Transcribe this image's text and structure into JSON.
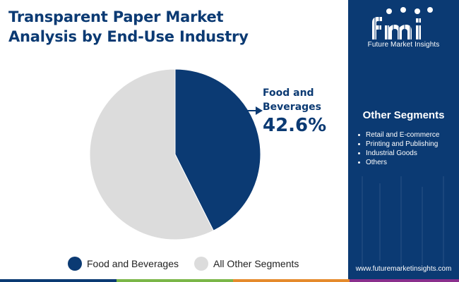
{
  "title": {
    "line1": "Transparent Paper Market",
    "line2": "Analysis by End-Use Industry"
  },
  "chart_data": {
    "type": "pie",
    "title": "Transparent Paper Market Analysis by End-Use Industry",
    "categories": [
      "Food and Beverages",
      "All Other Segments"
    ],
    "values": [
      42.6,
      57.4
    ],
    "colors": [
      "#0b3a73",
      "#dcdcdc"
    ],
    "legend_position": "bottom",
    "annotation": {
      "label": "Food and Beverages",
      "value": "42.6%"
    }
  },
  "legend": {
    "items": [
      {
        "label": "Food and Beverages",
        "color": "#0b3a73"
      },
      {
        "label": "All Other Segments",
        "color": "#dcdcdc"
      }
    ]
  },
  "callout": {
    "label_line1": "Food and",
    "label_line2": "Beverages",
    "value": "42.6%"
  },
  "sidebar": {
    "logo_text": "Future Market Insights",
    "segments_title": "Other Segments",
    "segments": [
      "Retail and E-commerce",
      "Printing and Publishing",
      "Industrial Goods",
      "Others"
    ],
    "url": "www.futuremarketinsights.com"
  },
  "colors": {
    "brand_navy": "#0b3a73",
    "other_gray": "#dcdcdc",
    "bottom_bar": [
      "#0b3a73",
      "#7ab648",
      "#e58a2c",
      "#8a2f8c"
    ]
  }
}
